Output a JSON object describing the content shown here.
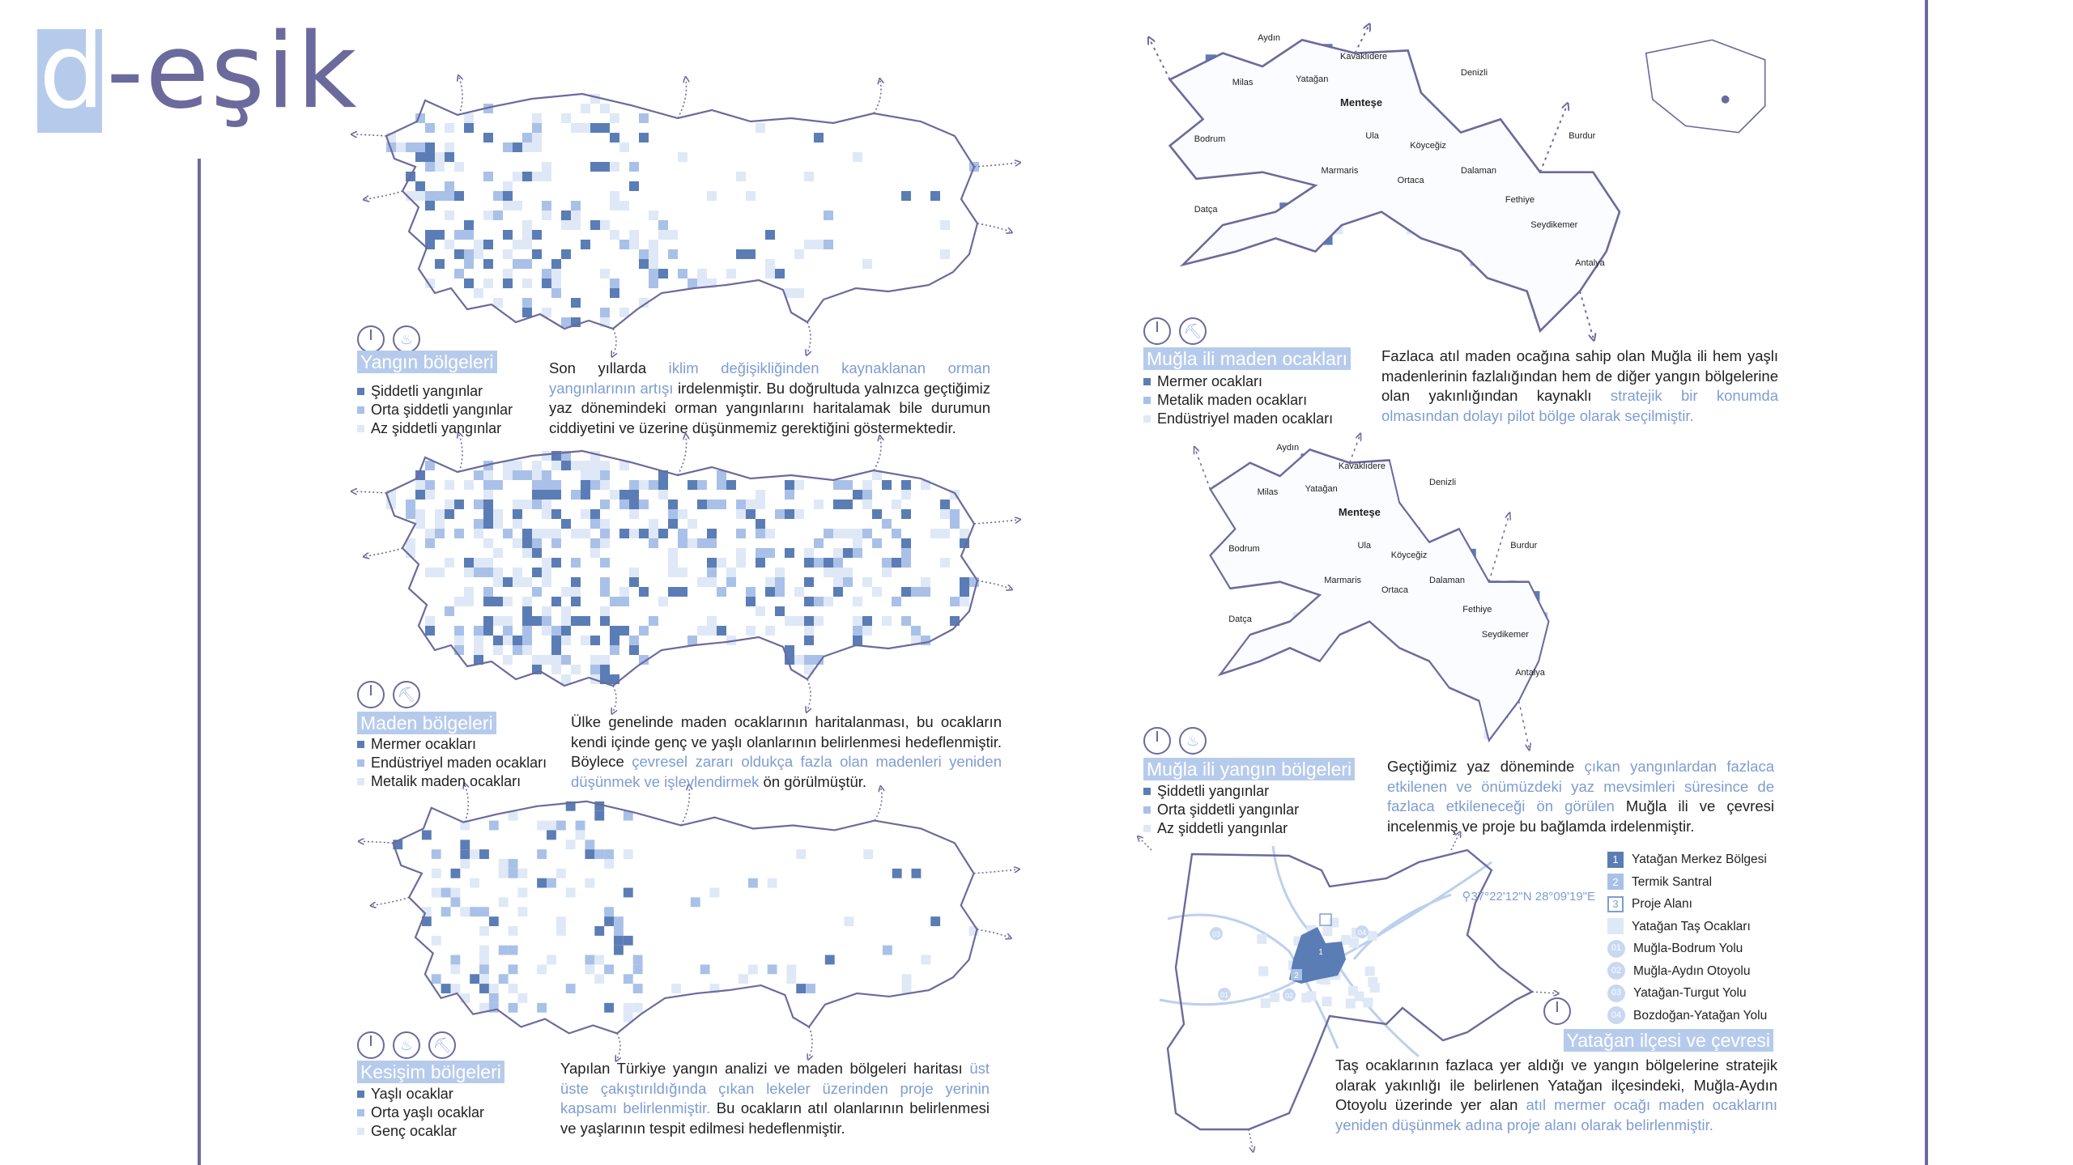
{
  "logo": {
    "letter": "d",
    "rest": "-eşik"
  },
  "colors": {
    "accent": "#6c6a9c",
    "dark_square": "#5b7db5",
    "mid_square": "#a9c1e8",
    "light_square": "#dfe8f6",
    "highlight_text": "#7e9dd2",
    "title_bg": "#b6cbec"
  },
  "sections": [
    {
      "icons": [
        "clock-icon",
        "fire-icon"
      ],
      "title": "Yangın bölgeleri",
      "legend": [
        "Şiddetli yangınlar",
        "Orta şiddetli yangınlar",
        "Az şiddetli yangınlar"
      ],
      "paragraph": [
        {
          "t": "Son yıllarda ",
          "hl": false
        },
        {
          "t": "iklim değişikliğinden kaynaklanan orman yangınlarının artışı",
          "hl": true
        },
        {
          "t": " irdelenmiştir. Bu doğrultuda yalnızca geçtiğimiz yaz dönemindeki orman yangınlarını haritalamak bile durumun ciddiyetini ve üzerine düşünmemiz gerektiğini göstermektedir.",
          "hl": false
        }
      ]
    },
    {
      "icons": [
        "clock-icon",
        "mine-icon"
      ],
      "title": "Maden bölgeleri",
      "legend": [
        "Mermer ocakları",
        "Endüstriyel maden ocakları",
        "Metalik maden ocakları"
      ],
      "paragraph": [
        {
          "t": "Ülke genelinde maden ocaklarının haritalanması, bu ocakların kendi içinde genç ve yaşlı olanlarının belirlenmesi hedeflenmiştir. Böylece ",
          "hl": false
        },
        {
          "t": "çevresel zararı oldukça fazla olan madenleri yeniden düşünmek ve işlevlendirmek",
          "hl": true
        },
        {
          "t": " ön görülmüştür.",
          "hl": false
        }
      ]
    },
    {
      "icons": [
        "clock-icon",
        "fire-icon",
        "mine-icon"
      ],
      "title": "Kesişim bölgeleri",
      "legend": [
        "Yaşlı ocaklar",
        "Orta yaşlı ocaklar",
        "Genç ocaklar"
      ],
      "paragraph": [
        {
          "t": "Yapılan Türkiye yangın analizi ve maden bölgeleri haritası ",
          "hl": false
        },
        {
          "t": "üst üste çakıştırıldığında çıkan lekeler üzerinden proje yerinin kapsamı belirlenmiştir.",
          "hl": true
        },
        {
          "t": " Bu ocakların atıl olanlarının belirlenmesi ve yaşlarının tespit edilmesi hedeflenmiştir.",
          "hl": false
        }
      ]
    },
    {
      "icons": [
        "clock-icon",
        "mine-icon"
      ],
      "title": "Muğla ili maden ocakları",
      "legend": [
        "Mermer ocakları",
        "Metalik maden ocakları",
        "Endüstriyel maden ocakları"
      ],
      "paragraph": [
        {
          "t": "Fazlaca atıl maden ocağına sahip olan Muğla ili hem yaşlı madenlerinin fazlalığından hem de diğer yangın bölgelerine olan yakınlığından kaynaklı ",
          "hl": false
        },
        {
          "t": "stratejik bir konumda olmasından dolayı pilot bölge olarak seçilmiştir.",
          "hl": true
        }
      ]
    },
    {
      "icons": [
        "clock-icon",
        "fire-icon"
      ],
      "title": "Muğla ili yangın bölgeleri",
      "legend": [
        "Şiddetli yangınlar",
        "Orta şiddetli yangınlar",
        "Az şiddetli yangınlar"
      ],
      "paragraph": [
        {
          "t": "Geçtiğimiz yaz döneminde ",
          "hl": false
        },
        {
          "t": "çıkan yangınlardan fazlaca etkilenen ve önümüzdeki yaz mevsimleri süresince de fazlaca etkileneceği ön görülen",
          "hl": true
        },
        {
          "t": " Muğla ili ve çevresi incelenmiş ve proje bu bağlamda irdelenmiştir.",
          "hl": false
        }
      ]
    },
    {
      "icons": [
        "clock-icon"
      ],
      "title": "Yatağan ilçesi ve çevresi",
      "paragraph": [
        {
          "t": "Taş ocaklarının fazlaca yer aldığı ve yangın bölgelerine stratejik olarak yakınlığı ile belirlenen Yatağan ilçesindeki, Muğla-Aydın Otoyolu üzerinde yer alan ",
          "hl": false
        },
        {
          "t": "atıl mermer ocağı maden ocaklarını yeniden düşünmek adına proje alanı olarak belirlenmiştir.",
          "hl": true
        }
      ]
    }
  ],
  "mugla_map_labels": {
    "aydin": "Aydın",
    "milas": "Milas",
    "yatagan": "Yatağan",
    "kavaklidere": "Kavaklıdere",
    "mentese": "Menteşe",
    "denizli": "Denizli",
    "bodrum": "Bodrum",
    "ula": "Ula",
    "koycegiz": "Köyceğiz",
    "marmaris": "Marmaris",
    "dalaman": "Dalaman",
    "ortaca": "Ortaca",
    "datca": "Datça",
    "fethiye": "Fethiye",
    "seydikemer": "Seydikemer",
    "antalya": "Antalya",
    "burdur": "Burdur"
  },
  "yatagan_map": {
    "coordinates": "37°22'12\"N 28°09'19\"E",
    "legend": [
      {
        "mark": "1",
        "label": "Yatağan Merkez Bölgesi",
        "kind": "dark"
      },
      {
        "mark": "2",
        "label": "Termik Santral",
        "kind": "mid"
      },
      {
        "mark": "3",
        "label": "Proje Alanı",
        "kind": "outline"
      },
      {
        "mark": "",
        "label": "Yatağan Taş Ocakları",
        "kind": "light"
      },
      {
        "mark": "01",
        "label": "Muğla-Bodrum Yolu",
        "kind": "circle"
      },
      {
        "mark": "02",
        "label": "Muğla-Aydın Otoyolu",
        "kind": "circle"
      },
      {
        "mark": "03",
        "label": "Yatağan-Turgut Yolu",
        "kind": "circle"
      },
      {
        "mark": "04",
        "label": "Bozdoğan-Yatağan Yolu",
        "kind": "circle"
      }
    ],
    "area_labels": [
      "1",
      "2",
      "3"
    ],
    "road_labels": [
      "01",
      "02",
      "03",
      "04"
    ]
  }
}
